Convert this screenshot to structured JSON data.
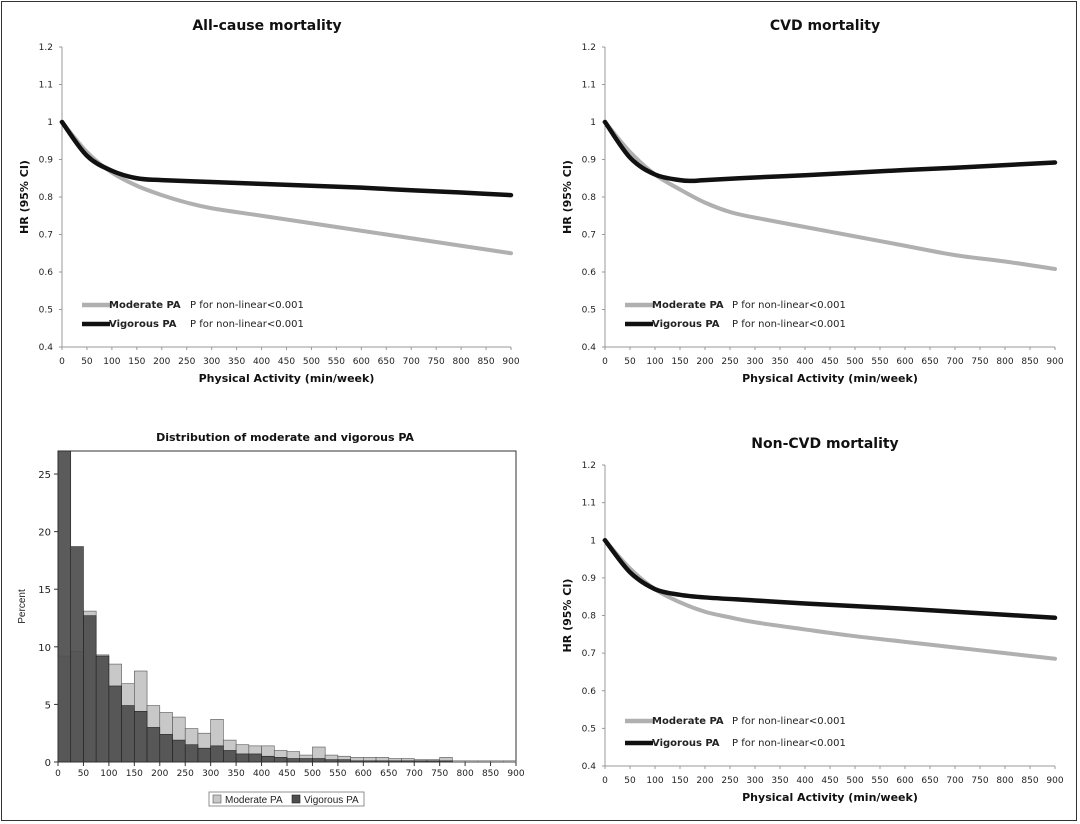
{
  "chart_data": [
    {
      "type": "line",
      "title": "All-cause mortality",
      "xlabel": "Physical Activity (min/week)",
      "ylabel": "HR (95% CI)",
      "xlim": [
        0,
        900
      ],
      "ylim": [
        0.4,
        1.2
      ],
      "xticks": [
        0,
        50,
        100,
        150,
        200,
        250,
        300,
        350,
        400,
        450,
        500,
        550,
        600,
        650,
        700,
        750,
        800,
        850,
        900
      ],
      "yticks": [
        0.4,
        0.5,
        0.6,
        0.7,
        0.8,
        0.9,
        1,
        1.1,
        1.2
      ],
      "legend": "bottom-left",
      "series": [
        {
          "name": "Moderate PA",
          "note": "P for non-linear<0.001",
          "color": "#b0b0b0",
          "x": [
            0,
            50,
            100,
            150,
            200,
            250,
            300,
            400,
            500,
            600,
            700,
            800,
            900
          ],
          "y": [
            1.0,
            0.92,
            0.865,
            0.83,
            0.805,
            0.785,
            0.77,
            0.75,
            0.73,
            0.71,
            0.69,
            0.67,
            0.65
          ]
        },
        {
          "name": "Vigorous PA",
          "note": "P for non-linear<0.001",
          "color": "#111111",
          "x": [
            0,
            50,
            100,
            150,
            200,
            300,
            400,
            500,
            600,
            700,
            800,
            900
          ],
          "y": [
            1.0,
            0.91,
            0.87,
            0.85,
            0.845,
            0.84,
            0.835,
            0.83,
            0.825,
            0.818,
            0.812,
            0.805
          ]
        }
      ]
    },
    {
      "type": "line",
      "title": "CVD mortality",
      "xlabel": "Physical Activity (min/week)",
      "ylabel": "HR (95% CI)",
      "xlim": [
        0,
        900
      ],
      "ylim": [
        0.4,
        1.2
      ],
      "xticks": [
        0,
        50,
        100,
        150,
        200,
        250,
        300,
        350,
        400,
        450,
        500,
        550,
        600,
        650,
        700,
        750,
        800,
        850,
        900
      ],
      "yticks": [
        0.4,
        0.5,
        0.6,
        0.7,
        0.8,
        0.9,
        1,
        1.1,
        1.2
      ],
      "legend": "bottom-left",
      "series": [
        {
          "name": "Moderate PA",
          "note": "P for non-linear<0.001",
          "color": "#b0b0b0",
          "x": [
            0,
            50,
            100,
            150,
            200,
            250,
            300,
            400,
            500,
            600,
            700,
            800,
            900
          ],
          "y": [
            1.0,
            0.92,
            0.86,
            0.82,
            0.785,
            0.76,
            0.745,
            0.72,
            0.695,
            0.67,
            0.645,
            0.628,
            0.608
          ]
        },
        {
          "name": "Vigorous PA",
          "note": "P for non-linear<0.001",
          "color": "#111111",
          "x": [
            0,
            50,
            100,
            150,
            175,
            200,
            300,
            400,
            500,
            600,
            700,
            800,
            900
          ],
          "y": [
            1.0,
            0.905,
            0.86,
            0.845,
            0.843,
            0.845,
            0.852,
            0.858,
            0.865,
            0.872,
            0.878,
            0.885,
            0.892
          ]
        }
      ]
    },
    {
      "type": "bar",
      "title": "Distribution of moderate and vigorous PA",
      "xlabel": "",
      "ylabel": "Percent",
      "xlim": [
        0,
        900
      ],
      "ylim": [
        0,
        27
      ],
      "xticks": [
        0,
        50,
        100,
        150,
        200,
        250,
        300,
        350,
        400,
        450,
        500,
        550,
        600,
        650,
        700,
        750,
        800,
        850,
        900
      ],
      "yticks": [
        0,
        5,
        10,
        15,
        20,
        25
      ],
      "bin_width": 25,
      "legend": "bottom-center",
      "series": [
        {
          "name": "Moderate PA",
          "color": "#c8c8c8",
          "values": [
            9.2,
            9.6,
            13.1,
            9.3,
            8.5,
            6.8,
            7.9,
            4.9,
            4.3,
            3.9,
            2.9,
            2.5,
            3.7,
            1.9,
            1.5,
            1.4,
            1.4,
            1.0,
            0.9,
            0.6,
            1.3,
            0.6,
            0.5,
            0.4,
            0.4,
            0.4,
            0.3,
            0.3,
            0.2,
            0.2,
            0.4,
            0.1,
            0.1,
            0.1,
            0.1,
            0.1
          ]
        },
        {
          "name": "Vigorous PA",
          "color": "#4d4d4d",
          "values": [
            27.0,
            18.7,
            12.7,
            9.2,
            6.6,
            4.9,
            4.4,
            3.0,
            2.4,
            1.9,
            1.5,
            1.2,
            1.4,
            1.0,
            0.7,
            0.7,
            0.5,
            0.4,
            0.3,
            0.3,
            0.3,
            0.2,
            0.2,
            0.1,
            0.1,
            0.1,
            0.1,
            0.1,
            0.1,
            0.1,
            0.1,
            0.0,
            0.0,
            0.0,
            0.0,
            0.0
          ]
        }
      ]
    },
    {
      "type": "line",
      "title": "Non-CVD mortality",
      "xlabel": "Physical Activity (min/week)",
      "ylabel": "HR (95% CI)",
      "xlim": [
        0,
        900
      ],
      "ylim": [
        0.4,
        1.2
      ],
      "xticks": [
        0,
        50,
        100,
        150,
        200,
        250,
        300,
        350,
        400,
        450,
        500,
        550,
        600,
        650,
        700,
        750,
        800,
        850,
        900
      ],
      "yticks": [
        0.4,
        0.5,
        0.6,
        0.7,
        0.8,
        0.9,
        1,
        1.1,
        1.2
      ],
      "legend": "bottom-left",
      "series": [
        {
          "name": "Moderate PA",
          "note": "P for non-linear<0.001",
          "color": "#b0b0b0",
          "x": [
            0,
            50,
            100,
            150,
            200,
            250,
            300,
            400,
            500,
            600,
            700,
            800,
            900
          ],
          "y": [
            1.0,
            0.925,
            0.87,
            0.835,
            0.81,
            0.795,
            0.782,
            0.763,
            0.745,
            0.73,
            0.715,
            0.7,
            0.685
          ]
        },
        {
          "name": "Vigorous PA",
          "note": "P for non-linear<0.001",
          "color": "#111111",
          "x": [
            0,
            50,
            100,
            150,
            200,
            300,
            400,
            500,
            600,
            700,
            800,
            900
          ],
          "y": [
            1.0,
            0.915,
            0.87,
            0.855,
            0.848,
            0.84,
            0.832,
            0.825,
            0.818,
            0.81,
            0.802,
            0.794
          ]
        }
      ]
    }
  ]
}
